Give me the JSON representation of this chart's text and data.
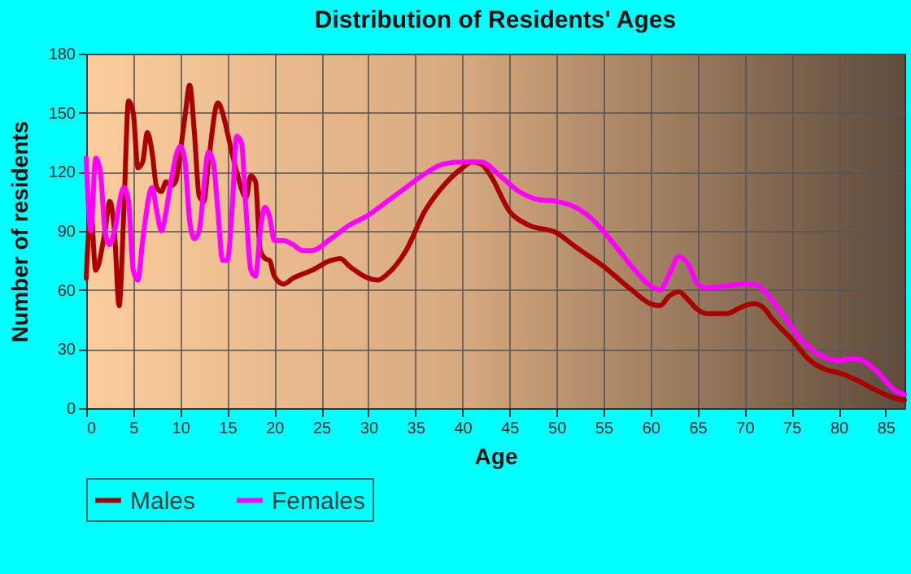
{
  "chart_data": {
    "type": "line",
    "title": "Distribution of Residents' Ages",
    "xlabel": "Age",
    "ylabel": "Number of residents",
    "xlim": [
      0,
      87
    ],
    "xticks": [
      0,
      5,
      10,
      15,
      20,
      25,
      30,
      35,
      40,
      45,
      50,
      55,
      60,
      65,
      70,
      75,
      80,
      85
    ],
    "ylim": [
      0,
      180
    ],
    "yticks": [
      0,
      30,
      60,
      90,
      120,
      150,
      180
    ],
    "grid": true,
    "legend": "bottom",
    "marker": "none",
    "line_style": "solid",
    "series": [
      {
        "name": "Males",
        "color": "#aa0000",
        "x": [
          0,
          0.5,
          1,
          2,
          2.5,
          3,
          3.5,
          4,
          4.5,
          5,
          5.5,
          6,
          6.5,
          7,
          7.5,
          8,
          8.5,
          9,
          9.5,
          10,
          10.5,
          11,
          11.5,
          12,
          12.5,
          13,
          14,
          14.5,
          15,
          16,
          17,
          17.5,
          18,
          18.5,
          19,
          19.5,
          20,
          21,
          22,
          24,
          26,
          27,
          28,
          30,
          31,
          32,
          34,
          36,
          38,
          40,
          41,
          42,
          43,
          45,
          47,
          50,
          52,
          55,
          58,
          60,
          61,
          62,
          63,
          64,
          65,
          66,
          68,
          70,
          71,
          72,
          73,
          75,
          77,
          79,
          80,
          82,
          84,
          86,
          87
        ],
        "values": [
          66,
          100,
          70,
          90,
          105,
          90,
          52,
          100,
          156,
          150,
          122,
          125,
          140,
          130,
          112,
          110,
          115,
          113,
          115,
          130,
          148,
          164,
          140,
          108,
          105,
          125,
          155,
          150,
          140,
          120,
          107,
          118,
          115,
          80,
          76,
          75,
          67,
          63,
          66,
          70,
          75,
          76,
          72,
          66,
          65,
          68,
          80,
          100,
          113,
          122,
          125,
          124,
          118,
          100,
          93,
          89,
          82,
          72,
          60,
          53,
          52,
          57,
          59,
          55,
          50,
          48,
          48,
          52,
          53,
          51,
          45,
          35,
          24,
          19,
          18,
          14,
          9,
          5,
          4
        ]
      },
      {
        "name": "Females",
        "color": "#ff00ff",
        "x": [
          0,
          0.5,
          1,
          1.5,
          2,
          2.5,
          3,
          4,
          4.5,
          5,
          5.5,
          6,
          7,
          7.5,
          8,
          8.5,
          9,
          10,
          10.5,
          11,
          11.5,
          12,
          13,
          13.5,
          14,
          14.5,
          15,
          15.5,
          16,
          16.5,
          17,
          17.5,
          18,
          18.5,
          19,
          19.5,
          20,
          21,
          22,
          23,
          24,
          26,
          28,
          30,
          32,
          34,
          36,
          38,
          40,
          42,
          44,
          46,
          48,
          50,
          52,
          54,
          56,
          58,
          60,
          61,
          62,
          63,
          64,
          65,
          66,
          68,
          70,
          71,
          72,
          74,
          76,
          78,
          79,
          80,
          81,
          82,
          84,
          86,
          87
        ],
        "values": [
          127,
          90,
          127,
          120,
          90,
          83,
          90,
          112,
          105,
          70,
          65,
          85,
          112,
          100,
          90,
          100,
          115,
          133,
          125,
          95,
          86,
          90,
          130,
          125,
          100,
          75,
          75,
          100,
          138,
          135,
          100,
          70,
          67,
          90,
          102,
          97,
          85,
          85,
          83,
          80,
          80,
          86,
          93,
          98,
          105,
          112,
          119,
          124,
          125,
          125,
          118,
          110,
          106,
          105,
          102,
          95,
          84,
          72,
          62,
          60,
          68,
          77,
          73,
          63,
          61,
          62,
          63,
          63,
          60,
          48,
          35,
          27,
          25,
          24,
          25,
          25,
          19,
          9,
          7
        ]
      }
    ]
  }
}
